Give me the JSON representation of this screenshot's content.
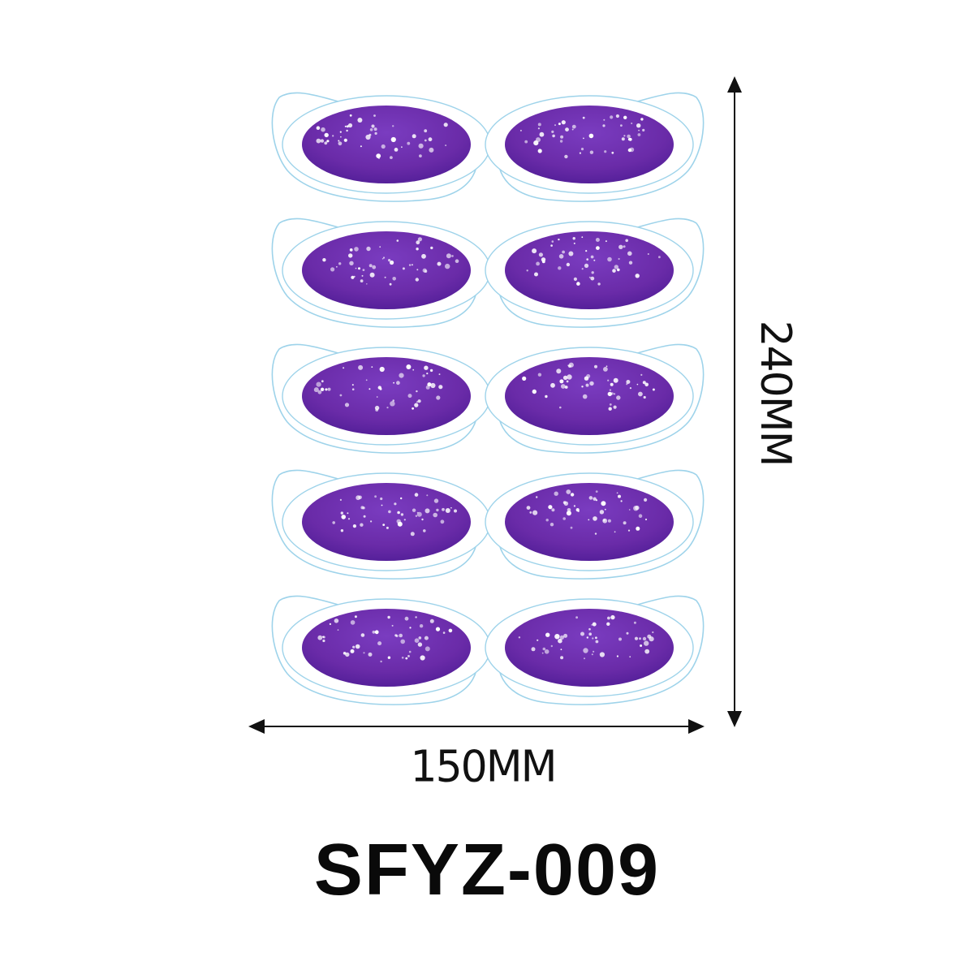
{
  "product": {
    "code": "SFYZ-009"
  },
  "dimensions": {
    "width_label": "150MM",
    "height_label": "240MM"
  },
  "sheet": {
    "rows": 5,
    "columns": 2,
    "patch_color": "#6a2ba8",
    "patch_color_dark": "#4a1c86",
    "outline_color": "#9ed3ea",
    "sparkle_color": "#ffffff"
  }
}
